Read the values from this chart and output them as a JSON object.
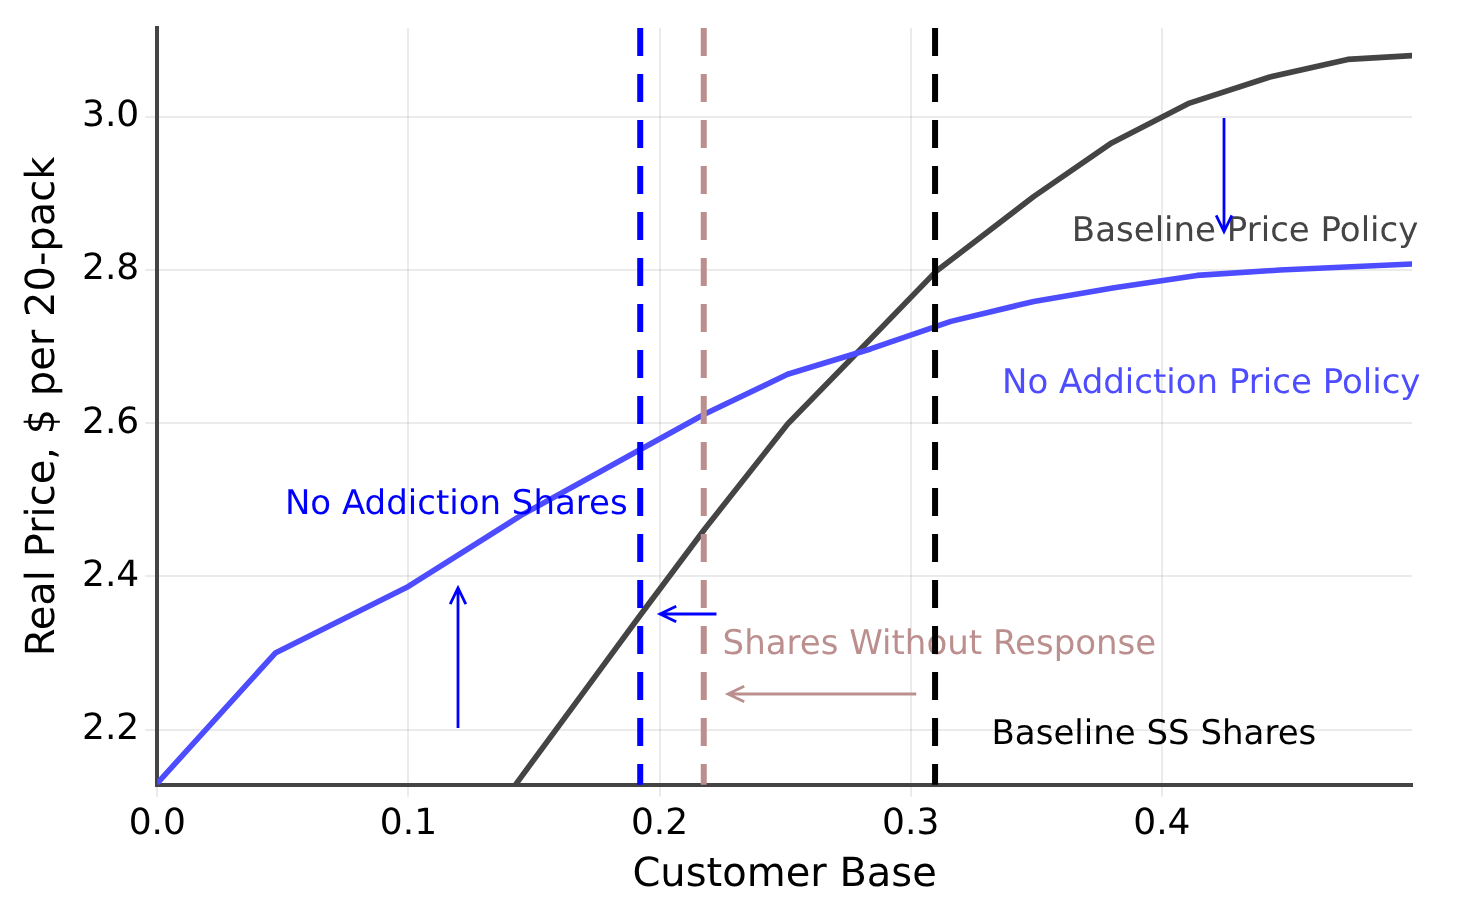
{
  "chart_data": {
    "type": "line",
    "xlabel": "Customer Base",
    "ylabel": "Real Price, $ per 20-pack",
    "xlim": [
      0,
      0.4996
    ],
    "ylim": [
      2.128,
      3.116
    ],
    "xticks": [
      {
        "value": 0,
        "label": "0.0"
      },
      0.1,
      0.2,
      0.3,
      0.4
    ],
    "yticks": [
      2.2,
      2.4,
      2.6,
      2.8,
      {
        "value": 3,
        "label": "3.0"
      }
    ],
    "grid": true,
    "legend": false,
    "marker": "none",
    "line_style": "solid",
    "series": [
      {
        "name": "No Addiction Price Policy",
        "color": "#4d4dff",
        "x": [
          0,
          0.047,
          0.1,
          0.145,
          0.192,
          0.218,
          0.251,
          0.284,
          0.316,
          0.349,
          0.381,
          0.414,
          0.447,
          0.4996
        ],
        "values": [
          2.13,
          2.3,
          2.387,
          2.48,
          2.565,
          2.612,
          2.664,
          2.697,
          2.733,
          2.759,
          2.777,
          2.793,
          2.8,
          2.808
        ]
      },
      {
        "name": "Baseline Price Policy",
        "color": "#444444",
        "x": [
          0.1426,
          0.17,
          0.192,
          0.218,
          0.251,
          0.284,
          0.31,
          0.349,
          0.38,
          0.411,
          0.443,
          0.474,
          0.4996
        ],
        "values": [
          2.128,
          2.25,
          2.348,
          2.462,
          2.599,
          2.71,
          2.798,
          2.896,
          2.966,
          3.018,
          3.052,
          3.075,
          3.08
        ]
      }
    ],
    "ref_lines": [
      {
        "axis": "x",
        "value": 0.1923,
        "label": "No Addiction Shares",
        "color": "#0000ff",
        "line_style": "dashed"
      },
      {
        "axis": "x",
        "value": 0.2176,
        "label": "Shares Without Response",
        "color": "#bc8f8f",
        "line_style": "dashed"
      },
      {
        "axis": "x",
        "value": 0.3097,
        "label": "Baseline SS Shares",
        "color": "#000000",
        "line_style": "dashed"
      }
    ]
  }
}
